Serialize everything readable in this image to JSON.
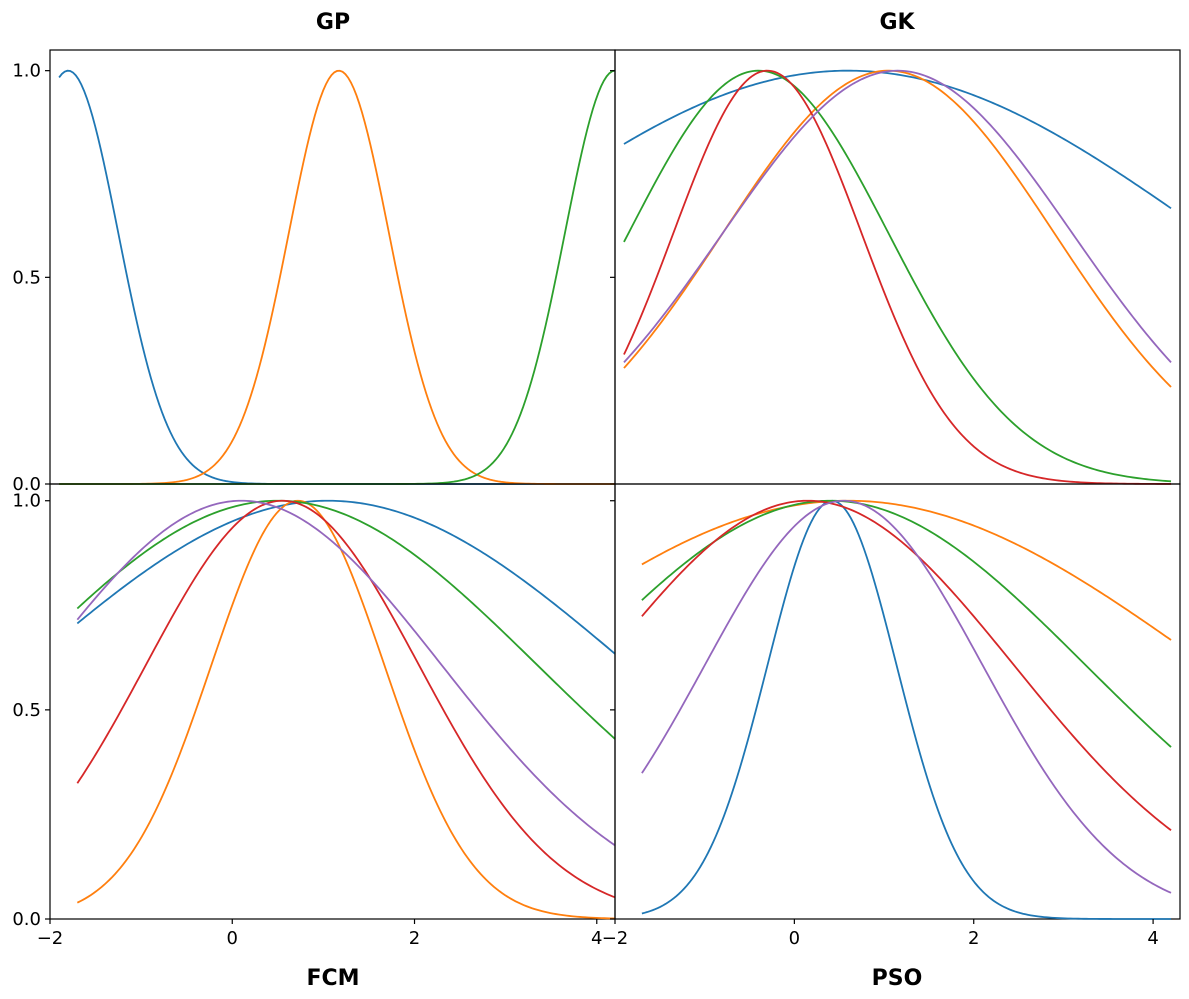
{
  "chart_data": [
    {
      "type": "line",
      "title": "GP",
      "title_position": "top",
      "xlim": [
        -2,
        4.2
      ],
      "ylim": [
        0,
        1.05
      ],
      "xticks": [
        -2,
        0,
        2,
        4
      ],
      "yticks": [
        0.0,
        0.5,
        1.0
      ],
      "ytick_labels": [
        "0.0",
        "0.5",
        "1.0"
      ],
      "x_range": [
        -1.9,
        4.2
      ],
      "series": [
        {
          "color": "#1f77b4",
          "center": -1.8,
          "sigma": 0.55
        },
        {
          "color": "#ff7f0e",
          "center": 1.17,
          "sigma": 0.55
        },
        {
          "color": "#2ca02c",
          "center": 4.2,
          "sigma": 0.55
        }
      ]
    },
    {
      "type": "line",
      "title": "GK",
      "title_position": "top",
      "xlim": [
        -2,
        4.3
      ],
      "ylim": [
        0,
        1.05
      ],
      "xticks": [
        -2,
        0,
        2,
        4
      ],
      "yticks": [
        0.0,
        0.5,
        1.0
      ],
      "x_range": [
        -1.9,
        4.2
      ],
      "series": [
        {
          "color": "#1f77b4",
          "center": 0.6,
          "sigma": 4.0
        },
        {
          "color": "#ff7f0e",
          "center": 1.05,
          "sigma": 1.85
        },
        {
          "color": "#2ca02c",
          "center": -0.4,
          "sigma": 1.45
        },
        {
          "color": "#d62728",
          "center": -0.3,
          "sigma": 1.05
        },
        {
          "color": "#9467bd",
          "center": 1.15,
          "sigma": 1.95
        }
      ]
    },
    {
      "type": "line",
      "title": "FCM",
      "title_position": "bottom",
      "xlim": [
        -2,
        4.2
      ],
      "ylim": [
        0,
        1.04
      ],
      "xticks": [
        -2,
        0,
        2,
        4
      ],
      "xtick_labels": [
        "−2",
        "0",
        "2",
        "4"
      ],
      "yticks": [
        0.0,
        0.5,
        1.0
      ],
      "ytick_labels": [
        "0.0",
        "0.5",
        "1.0"
      ],
      "x_range": [
        -1.7,
        4.2
      ],
      "series": [
        {
          "color": "#1f77b4",
          "center": 1.05,
          "sigma": 3.3
        },
        {
          "color": "#ff7f0e",
          "center": 0.72,
          "sigma": 0.95
        },
        {
          "color": "#2ca02c",
          "center": 0.5,
          "sigma": 2.85
        },
        {
          "color": "#d62728",
          "center": 0.55,
          "sigma": 1.5
        },
        {
          "color": "#9467bd",
          "center": 0.1,
          "sigma": 2.2
        }
      ]
    },
    {
      "type": "line",
      "title": "PSO",
      "title_position": "bottom",
      "xlim": [
        -2,
        4.3
      ],
      "ylim": [
        0,
        1.04
      ],
      "xticks": [
        -2,
        0,
        2,
        4
      ],
      "xtick_labels": [
        "−2",
        "0",
        "2",
        "4"
      ],
      "yticks": [
        0.0,
        0.5,
        1.0
      ],
      "x_range": [
        -1.7,
        4.2
      ],
      "series": [
        {
          "color": "#1f77b4",
          "center": 0.42,
          "sigma": 0.72
        },
        {
          "color": "#ff7f0e",
          "center": 0.6,
          "sigma": 4.0
        },
        {
          "color": "#2ca02c",
          "center": 0.4,
          "sigma": 2.85
        },
        {
          "color": "#d62728",
          "center": 0.15,
          "sigma": 2.3
        },
        {
          "color": "#9467bd",
          "center": 0.55,
          "sigma": 1.55
        }
      ]
    }
  ]
}
